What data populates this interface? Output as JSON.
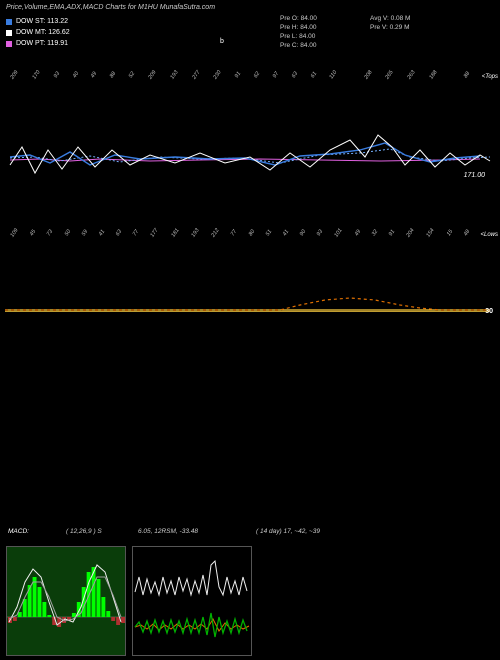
{
  "title": "Price,Volume,EMA,ADX,MACD Charts for M1HU MunafaSutra.com",
  "legend": {
    "dow_st": {
      "label": "DOW ST: 113.22",
      "color": "#3a7de0"
    },
    "dow_mt": {
      "label": "DOW MT: 126.62",
      "color": "#ffffff"
    },
    "dow_pt": {
      "label": "DOW PT: 119.91",
      "color": "#e060e0"
    }
  },
  "info_col1": {
    "l1": "Pre   O: 84.00",
    "l2": "Pre   H: 84.00",
    "l3": "Pre   L: 84.00",
    "l4": "Pre   C: 84.00"
  },
  "info_col2": {
    "l1": "Avg V: 0.08 M",
    "l2": "Pre   V: 0.29 M"
  },
  "b_marker": "b",
  "price_panel": {
    "y_right_label": "171.00",
    "side_top": "<Tops",
    "side_bottom": "<Lows",
    "xlabels_top": [
      "209",
      "170",
      "93",
      "40",
      "49",
      "88",
      "52",
      "209",
      "193",
      "277",
      "230",
      "91",
      "62",
      "97",
      "63",
      "61",
      "110",
      "",
      "208",
      "265",
      "263",
      "188",
      "",
      "88"
    ],
    "xlabels_bottom": [
      "109",
      "45",
      "73",
      "50",
      "59",
      "41",
      "63",
      "77",
      "177",
      "181",
      "193",
      "212",
      "77",
      "80",
      "51",
      "41",
      "90",
      "93",
      "101",
      "49",
      "32",
      "91",
      "204",
      "154",
      "15",
      "48"
    ],
    "colors": {
      "line_white": "#ffffff",
      "line_blue": "#3a7de0",
      "line_blue2": "#73aefc",
      "line_pink": "#e060e0",
      "bg": "#000000"
    }
  },
  "mid_panel": {
    "baseline_color": "#ffd040",
    "dash_color": "#e07000",
    "side_label": "30"
  },
  "macd_panel": {
    "label_macd": "MACD:",
    "params1": "( 12,26,9 ) S",
    "params2": "6.05,   12RSM, -33.48",
    "params3": "( 14    day) 17, ~42, ~39",
    "label_color": "#ffffff"
  },
  "box1": {
    "bg": "#0a3d0a",
    "bar_green": "#00ff00",
    "bar_red": "#b03030",
    "line_white": "#f0f0f0",
    "line_gray": "#a0a0a0"
  },
  "box2": {
    "bg": "#000000",
    "line_white": "#f0f0f0",
    "line_orange": "#e07000",
    "line_green": "#00b000"
  }
}
